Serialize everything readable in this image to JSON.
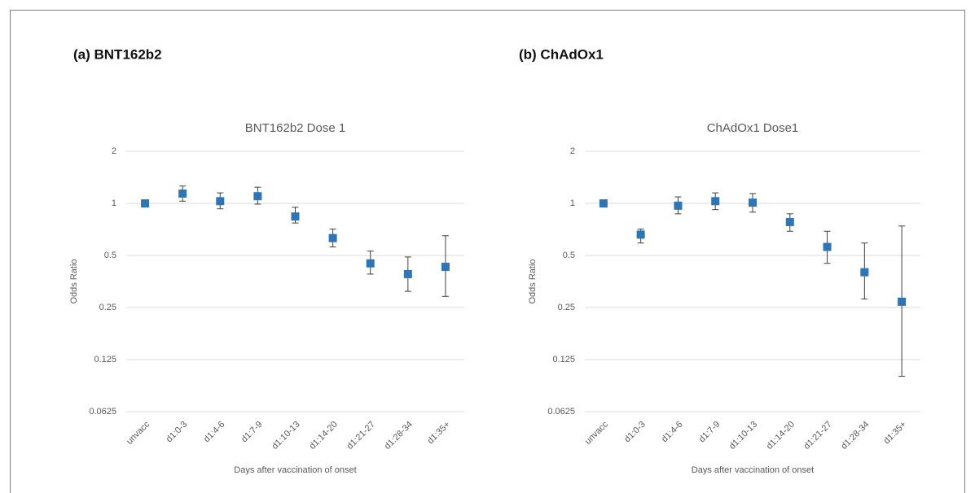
{
  "chart_data": [
    {
      "type": "errorbar",
      "panel_label": "(a) BNT162b2",
      "title": "BNT162b2 Dose 1",
      "x_label": "Days after vaccination of onset",
      "y_label": "Odds Ratio",
      "categories": [
        "unvacc",
        "d1:0-3",
        "d1:4-6",
        "d1:7-9",
        "d1:10-13",
        "d1:14-20",
        "d1:21-27",
        "d1:28-34",
        "d1:35+"
      ],
      "series": [
        {
          "color": "#2e75b6",
          "values": [
            1.0,
            1.14,
            1.03,
            1.1,
            0.84,
            0.63,
            0.45,
            0.39,
            0.43
          ],
          "lower": [
            1.0,
            1.03,
            0.93,
            0.99,
            0.77,
            0.56,
            0.39,
            0.31,
            0.29
          ],
          "upper": [
            1.0,
            1.26,
            1.15,
            1.24,
            0.95,
            0.71,
            0.53,
            0.49,
            0.65
          ]
        }
      ],
      "yscale": "log",
      "ylim": [
        0.0625,
        2
      ],
      "yticks": [
        0.0625,
        0.125,
        0.25,
        0.5,
        1,
        2
      ],
      "grid": true
    },
    {
      "type": "errorbar",
      "panel_label": "(b) ChAdOx1",
      "title": "ChAdOx1 Dose1",
      "x_label": "Days after vaccination of onset",
      "y_label": "Odds Ratio",
      "categories": [
        "unvacc",
        "d1:0-3",
        "d1:4-6",
        "d1:7-9",
        "d1:10-13",
        "d1:14-20",
        "d1:21-27",
        "d1:28-34",
        "d1:35+"
      ],
      "series": [
        {
          "color": "#2e75b6",
          "values": [
            1.0,
            0.66,
            0.97,
            1.03,
            1.01,
            0.78,
            0.56,
            0.4,
            0.27
          ],
          "lower": [
            1.0,
            0.59,
            0.87,
            0.92,
            0.89,
            0.69,
            0.45,
            0.28,
            0.1
          ],
          "upper": [
            1.0,
            0.71,
            1.09,
            1.15,
            1.14,
            0.87,
            0.69,
            0.59,
            0.74
          ]
        }
      ],
      "yscale": "log",
      "ylim": [
        0.0625,
        2
      ],
      "yticks": [
        0.0625,
        0.125,
        0.25,
        0.5,
        1,
        2
      ],
      "grid": true
    }
  ]
}
